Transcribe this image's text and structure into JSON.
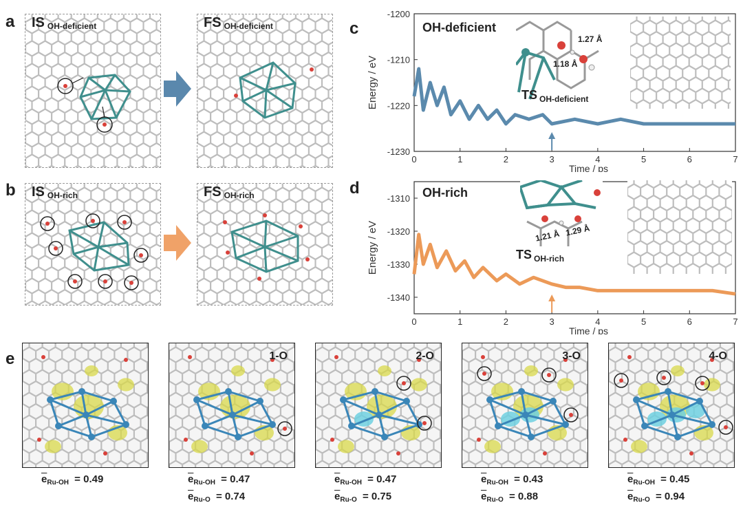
{
  "panels": {
    "a": {
      "letter": "a",
      "is_label": "IS",
      "is_sub": "OH-deficient",
      "fs_label": "FS",
      "fs_sub": "OH-deficient",
      "arrow_color": "#5a88ad"
    },
    "b": {
      "letter": "b",
      "is_label": "IS",
      "is_sub": "OH-rich",
      "fs_label": "FS",
      "fs_sub": "OH-rich",
      "arrow_color": "#f0a268"
    },
    "c": {
      "letter": "c",
      "title": "OH-deficient",
      "ts_label": "TS",
      "ts_sub": "OH-deficient",
      "bond_1": "1.27 Å",
      "bond_2": "1.18 Å",
      "color": "#5b8aad"
    },
    "d": {
      "letter": "d",
      "title": "OH-rich",
      "ts_label": "TS",
      "ts_sub": "OH-rich",
      "bond_1": "1.21 Å",
      "bond_2": "1.29 Å",
      "color": "#ec9a58"
    },
    "e": {
      "letter": "e",
      "items": [
        {
          "tag": "",
          "eq1_sub": "Ru-OH",
          "eq1_val": " = 0.49",
          "eq2_sub": "",
          "eq2_val": ""
        },
        {
          "tag": "1-O",
          "eq1_sub": "Ru-OH",
          "eq1_val": " = 0.47",
          "eq2_sub": "Ru-O",
          "eq2_val": " = 0.74"
        },
        {
          "tag": "2-O",
          "eq1_sub": "Ru-OH",
          "eq1_val": " = 0.47",
          "eq2_sub": "Ru-O",
          "eq2_val": " = 0.75"
        },
        {
          "tag": "3-O",
          "eq1_sub": "Ru-OH",
          "eq1_val": " = 0.43",
          "eq2_sub": "Ru-O",
          "eq2_val": " = 0.88"
        },
        {
          "tag": "4-O",
          "eq1_sub": "Ru-OH",
          "eq1_val": " = 0.45",
          "eq2_sub": "Ru-O",
          "eq2_val": " = 0.94"
        }
      ],
      "eq_letter": "e"
    }
  },
  "chart_data": [
    {
      "type": "line",
      "panel": "c",
      "title": "OH-deficient",
      "xlabel": "Time / ps",
      "ylabel": "Energy  / eV",
      "xlim": [
        0,
        7
      ],
      "ylim": [
        -1230,
        -1200
      ],
      "xticks": [
        0,
        1,
        2,
        3,
        4,
        5,
        6,
        7
      ],
      "yticks": [
        -1230,
        -1220,
        -1210,
        -1200
      ],
      "marker_x": 3,
      "series": [
        {
          "color": "#5b8aad",
          "x": [
            0,
            0.1,
            0.2,
            0.35,
            0.5,
            0.65,
            0.8,
            1.0,
            1.2,
            1.4,
            1.6,
            1.8,
            2.0,
            2.2,
            2.5,
            2.8,
            3.0,
            3.5,
            4.0,
            4.5,
            5.0,
            5.5,
            6.0,
            6.5,
            7.0
          ],
          "y": [
            -1218,
            -1212,
            -1221,
            -1215,
            -1220,
            -1216,
            -1222,
            -1219,
            -1223,
            -1220,
            -1223,
            -1221,
            -1224,
            -1222,
            -1223,
            -1222,
            -1224,
            -1223,
            -1224,
            -1223,
            -1224,
            -1224,
            -1224,
            -1224,
            -1224
          ]
        }
      ]
    },
    {
      "type": "line",
      "panel": "d",
      "title": "OH-rich",
      "xlabel": "Time / ps",
      "ylabel": "Energy  / eV",
      "xlim": [
        0,
        7
      ],
      "ylim": [
        -1345,
        -1305
      ],
      "xticks": [
        0,
        1,
        2,
        3,
        4,
        5,
        6,
        7
      ],
      "yticks": [
        -1340,
        -1330,
        -1320,
        -1310
      ],
      "marker_x": 3,
      "series": [
        {
          "color": "#ec9a58",
          "x": [
            0,
            0.1,
            0.2,
            0.35,
            0.5,
            0.7,
            0.9,
            1.1,
            1.3,
            1.5,
            1.8,
            2.0,
            2.3,
            2.6,
            3.0,
            3.3,
            3.6,
            4.0,
            4.5,
            5.0,
            5.5,
            6.0,
            6.5,
            7.0
          ],
          "y": [
            -1333,
            -1321,
            -1330,
            -1324,
            -1331,
            -1326,
            -1332,
            -1329,
            -1334,
            -1331,
            -1335,
            -1333,
            -1336,
            -1334,
            -1336,
            -1337,
            -1337,
            -1338,
            -1338,
            -1338,
            -1338,
            -1338,
            -1338,
            -1339
          ]
        }
      ]
    }
  ]
}
